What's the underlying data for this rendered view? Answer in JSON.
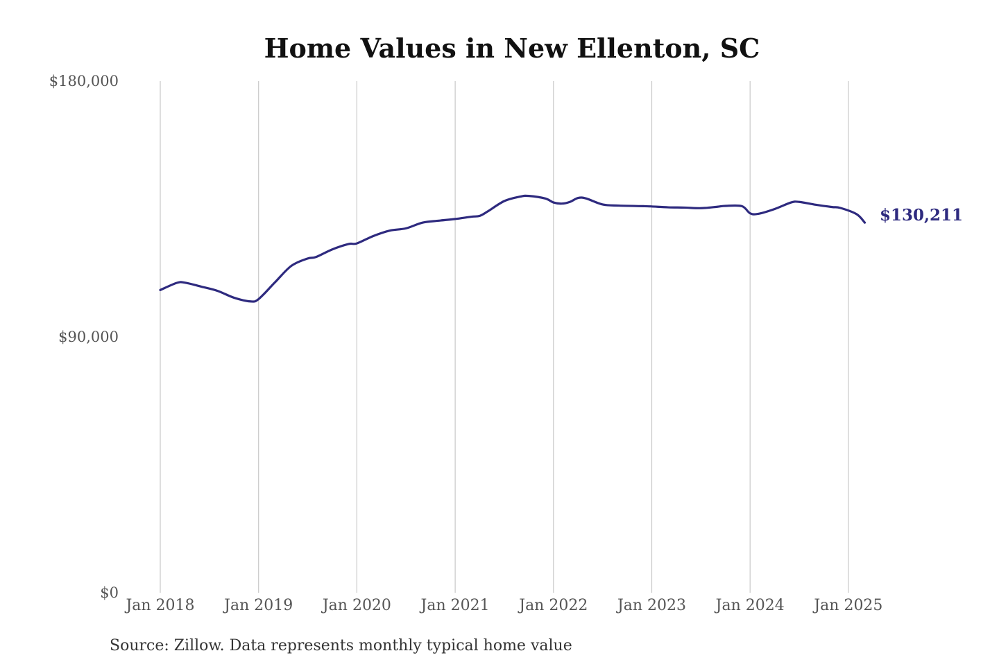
{
  "chart_data": {
    "type": "line",
    "title": "Home Values in New Ellenton, SC",
    "source": "Source: Zillow. Data represents monthly typical home value",
    "ylim": [
      0,
      180000
    ],
    "y_ticks": [
      {
        "value": 180000,
        "label": "$180,000"
      },
      {
        "value": 90000,
        "label": "$90,000"
      },
      {
        "value": 0,
        "label": "$0"
      }
    ],
    "x_ticks": [
      {
        "value": "2018-01",
        "label": "Jan 2018"
      },
      {
        "value": "2019-01",
        "label": "Jan 2019"
      },
      {
        "value": "2020-01",
        "label": "Jan 2020"
      },
      {
        "value": "2021-01",
        "label": "Jan 2021"
      },
      {
        "value": "2022-01",
        "label": "Jan 2022"
      },
      {
        "value": "2023-01",
        "label": "Jan 2023"
      },
      {
        "value": "2024-01",
        "label": "Jan 2024"
      },
      {
        "value": "2025-01",
        "label": "Jan 2025"
      }
    ],
    "grid": {
      "vertical": true,
      "horizontal": false
    },
    "line_color": "#2e2a7f",
    "end_label": "$130,211",
    "series": [
      {
        "x": [
          "2018-01",
          "2018-03",
          "2018-04",
          "2018-06",
          "2018-08",
          "2018-10",
          "2018-12",
          "2019-01",
          "2019-03",
          "2019-05",
          "2019-07",
          "2019-08",
          "2019-10",
          "2019-12",
          "2020-01",
          "2020-03",
          "2020-05",
          "2020-07",
          "2020-09",
          "2020-11",
          "2021-01",
          "2021-03",
          "2021-04",
          "2021-05",
          "2021-07",
          "2021-09",
          "2021-10",
          "2021-12",
          "2022-01",
          "2022-02",
          "2022-03",
          "2022-04",
          "2022-05",
          "2022-07",
          "2022-09",
          "2022-12",
          "2023-01",
          "2023-03",
          "2023-05",
          "2023-07",
          "2023-09",
          "2023-10",
          "2023-12",
          "2024-01",
          "2024-02",
          "2024-04",
          "2024-06",
          "2024-07",
          "2024-09",
          "2024-11",
          "2024-12",
          "2025-02",
          "2025-03"
        ],
        "values": [
          106500,
          109000,
          109100,
          107700,
          106200,
          103800,
          102500,
          103300,
          109200,
          115000,
          117600,
          118100,
          120800,
          122700,
          122900,
          125500,
          127400,
          128200,
          130200,
          130900,
          131500,
          132300,
          132600,
          134200,
          137800,
          139400,
          139600,
          138700,
          137300,
          136900,
          137500,
          138900,
          138700,
          136600,
          136200,
          136000,
          135900,
          135600,
          135500,
          135300,
          135800,
          136100,
          136000,
          133500,
          133300,
          135000,
          137300,
          137500,
          136500,
          135700,
          135400,
          133200,
          130211
        ]
      }
    ]
  }
}
